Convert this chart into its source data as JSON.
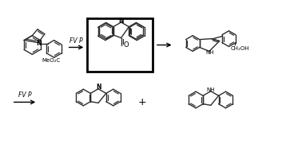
{
  "bg_color": "#ffffff",
  "line_color": "#2d2d2d",
  "box_color": "#000000",
  "text_color": "#000000",
  "arrow_color": "#000000",
  "figsize": [
    3.78,
    1.81
  ],
  "dpi": 100,
  "mol1_label": "MeO₂C",
  "arrow1_label": "FV P",
  "mol2_label": "O",
  "mol3_label_nh": "NH",
  "mol3_label_ch2oh": "CH₂OH",
  "arrow2_label": "FV P",
  "mol4_label_n": "N",
  "plus_label": "+",
  "mol5_label_nh": "NH",
  "mol1_n_label": "N"
}
